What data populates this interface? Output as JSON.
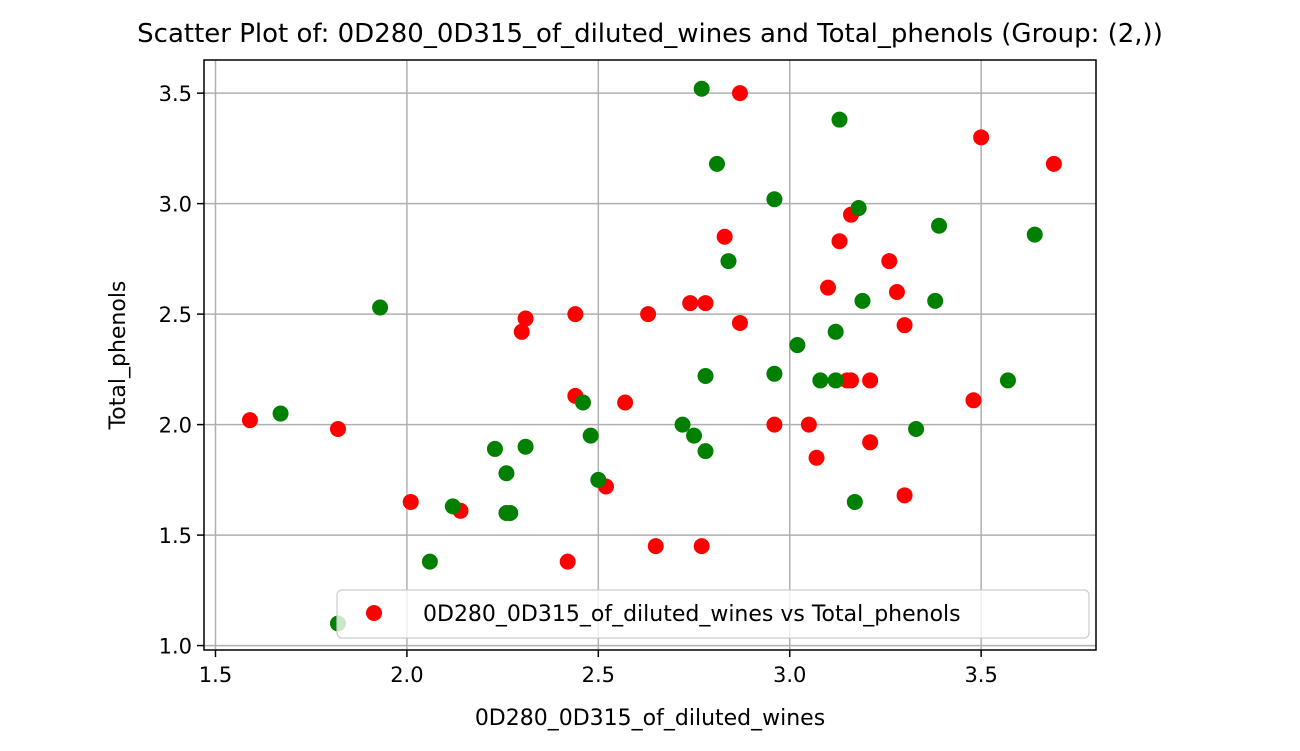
{
  "chart_data": {
    "type": "scatter",
    "title": "Scatter Plot of: 0D280_0D315_of_diluted_wines and Total_phenols (Group: (2,))",
    "xlabel": "0D280_0D315_of_diluted_wines",
    "ylabel": "Total_phenols",
    "xlim": [
      1.47,
      3.8
    ],
    "ylim": [
      0.98,
      3.65
    ],
    "xticks": [
      1.5,
      2.0,
      2.5,
      3.0,
      3.5
    ],
    "xtick_labels": [
      "1.5",
      "2.0",
      "2.5",
      "3.0",
      "3.5"
    ],
    "yticks": [
      1.0,
      1.5,
      2.0,
      2.5,
      3.0,
      3.5
    ],
    "ytick_labels": [
      "1.0",
      "1.5",
      "2.0",
      "2.5",
      "3.0",
      "3.5"
    ],
    "grid": true,
    "legend_position": "bottom-right",
    "series": [
      {
        "name": "0D280_0D315_of_diluted_wines vs Total_phenols",
        "color": "#ff0000",
        "x": [
          1.59,
          1.82,
          2.01,
          2.14,
          2.3,
          2.31,
          2.42,
          2.44,
          2.44,
          2.52,
          2.57,
          2.63,
          2.65,
          2.74,
          2.77,
          2.78,
          2.83,
          2.87,
          2.87,
          2.96,
          3.05,
          3.07,
          3.1,
          3.13,
          3.15,
          3.16,
          3.16,
          3.21,
          3.21,
          3.26,
          3.28,
          3.3,
          3.3,
          3.48,
          3.5,
          3.69
        ],
        "y": [
          2.02,
          1.98,
          1.65,
          1.61,
          2.42,
          2.48,
          1.38,
          2.5,
          2.13,
          1.72,
          2.1,
          2.5,
          1.45,
          2.55,
          1.45,
          2.55,
          2.85,
          2.46,
          3.5,
          2.0,
          2.0,
          1.85,
          2.62,
          2.83,
          2.2,
          2.2,
          2.95,
          2.2,
          1.92,
          2.74,
          2.6,
          2.45,
          1.68,
          2.11,
          3.3,
          3.18
        ]
      },
      {
        "color": "#008000",
        "x": [
          1.67,
          1.82,
          1.93,
          2.06,
          2.12,
          2.23,
          2.26,
          2.26,
          2.27,
          2.31,
          2.46,
          2.48,
          2.5,
          2.72,
          2.75,
          2.77,
          2.78,
          2.78,
          2.81,
          2.84,
          2.96,
          2.96,
          3.02,
          3.08,
          3.12,
          3.12,
          3.13,
          3.17,
          3.18,
          3.19,
          3.33,
          3.38,
          3.39,
          3.57,
          3.64
        ],
        "y": [
          2.05,
          1.1,
          2.53,
          1.38,
          1.63,
          1.89,
          1.78,
          1.6,
          1.6,
          1.9,
          2.1,
          1.95,
          1.75,
          2.0,
          1.95,
          3.52,
          2.22,
          1.88,
          3.18,
          2.74,
          3.02,
          2.23,
          2.36,
          2.2,
          2.42,
          2.2,
          3.38,
          1.65,
          2.98,
          2.56,
          1.98,
          2.56,
          2.9,
          2.2,
          2.86
        ]
      }
    ]
  }
}
